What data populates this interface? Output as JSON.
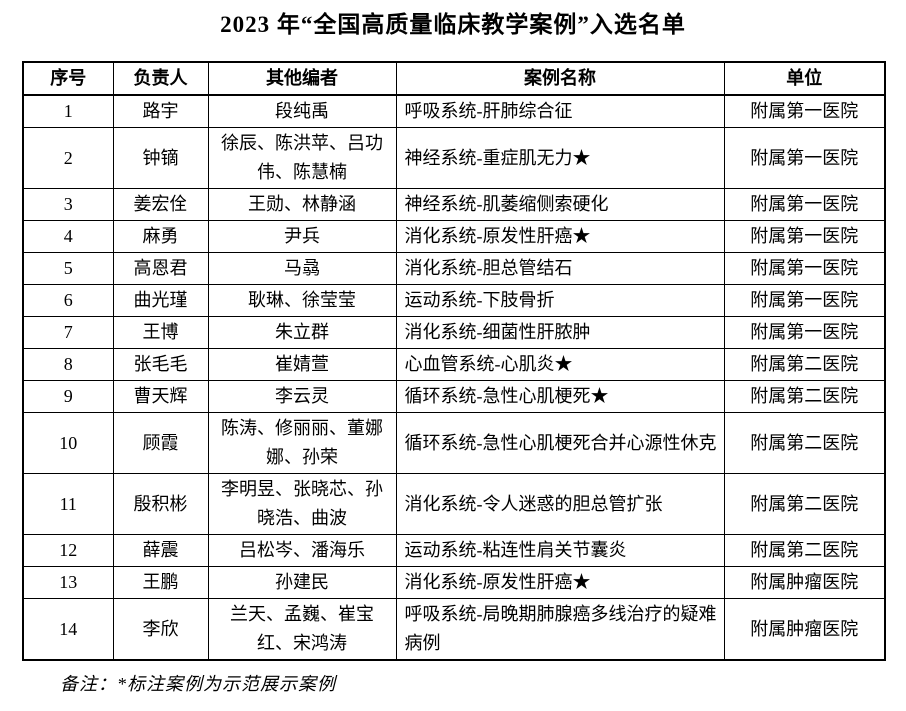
{
  "page": {
    "title": "2023 年“全国高质量临床教学案例”入选名单",
    "note": "备注：*标注案例为示范展示案例"
  },
  "table": {
    "headers": {
      "no": "序号",
      "leader": "负责人",
      "editors": "其他编者",
      "case": "案例名称",
      "unit": "单位"
    },
    "rows": [
      {
        "no": "1",
        "leader": "路宇",
        "editors": "段纯禹",
        "case": "呼吸系统-肝肺综合征",
        "unit": "附属第一医院"
      },
      {
        "no": "2",
        "leader": "钟镝",
        "editors": "徐辰、陈洪苹、吕功伟、陈慧楠",
        "case": "神经系统-重症肌无力★",
        "unit": "附属第一医院"
      },
      {
        "no": "3",
        "leader": "姜宏佺",
        "editors": "王勋、林静涵",
        "case": "神经系统-肌萎缩侧索硬化",
        "unit": "附属第一医院"
      },
      {
        "no": "4",
        "leader": "麻勇",
        "editors": "尹兵",
        "case": "消化系统-原发性肝癌★",
        "unit": "附属第一医院"
      },
      {
        "no": "5",
        "leader": "高恩君",
        "editors": "马骉",
        "case": "消化系统-胆总管结石",
        "unit": "附属第一医院"
      },
      {
        "no": "6",
        "leader": "曲光瑾",
        "editors": "耿琳、徐莹莹",
        "case": "运动系统-下肢骨折",
        "unit": "附属第一医院"
      },
      {
        "no": "7",
        "leader": "王博",
        "editors": "朱立群",
        "case": "消化系统-细菌性肝脓肿",
        "unit": "附属第一医院"
      },
      {
        "no": "8",
        "leader": "张毛毛",
        "editors": "崔婧萱",
        "case": "心血管系统-心肌炎★",
        "unit": "附属第二医院"
      },
      {
        "no": "9",
        "leader": "曹天辉",
        "editors": "李云灵",
        "case": "循环系统-急性心肌梗死★",
        "unit": "附属第二医院"
      },
      {
        "no": "10",
        "leader": "顾霞",
        "editors": "陈涛、修丽丽、董娜娜、孙荣",
        "case": "循环系统-急性心肌梗死合并心源性休克",
        "unit": "附属第二医院"
      },
      {
        "no": "11",
        "leader": "殷积彬",
        "editors": "李明昱、张晓芯、孙晓浩、曲波",
        "case": "消化系统-令人迷惑的胆总管扩张",
        "unit": "附属第二医院"
      },
      {
        "no": "12",
        "leader": "薛震",
        "editors": "吕松岑、潘海乐",
        "case": "运动系统-粘连性肩关节囊炎",
        "unit": "附属第二医院"
      },
      {
        "no": "13",
        "leader": "王鹏",
        "editors": "孙建民",
        "case": "消化系统-原发性肝癌★",
        "unit": "附属肿瘤医院"
      },
      {
        "no": "14",
        "leader": "李欣",
        "editors": "兰天、孟巍、崔宝红、宋鸿涛",
        "case": "呼吸系统-局晚期肺腺癌多线治疗的疑难病例",
        "unit": "附属肿瘤医院"
      }
    ]
  }
}
